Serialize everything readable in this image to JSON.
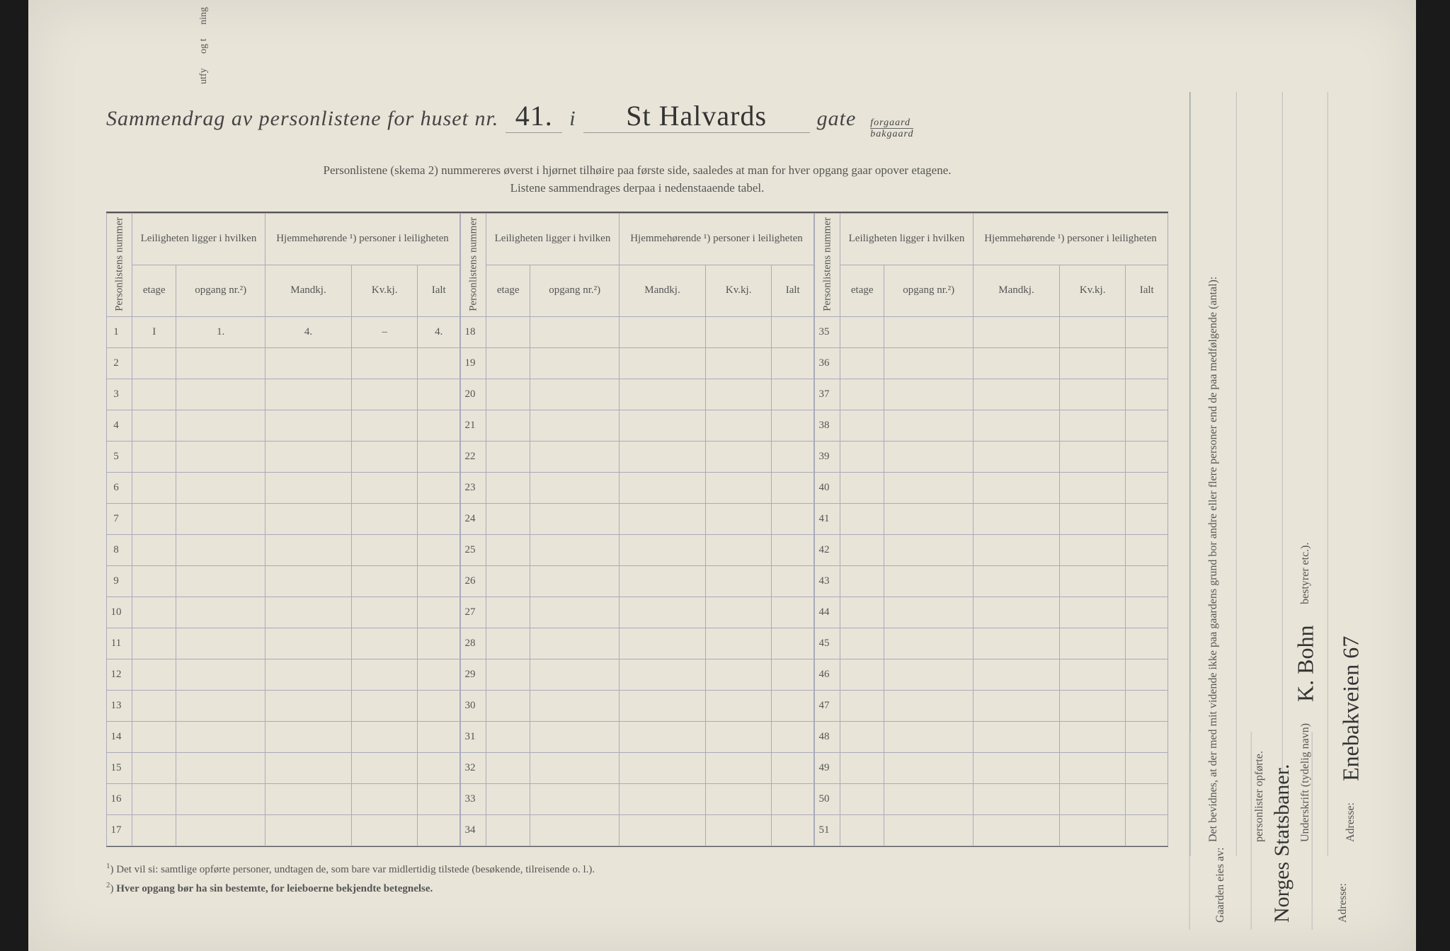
{
  "top_fragments": [
    "utfy",
    "og t",
    "ning"
  ],
  "title": {
    "prefix": "Sammendrag av personlistene for huset nr.",
    "house_nr": "41.",
    "sep1": "i",
    "street": "St Halvards",
    "suffix": "gate",
    "frac_top": "forgaard",
    "frac_bottom": "bakgaard"
  },
  "subtitle_line1": "Personlistene (skema 2) nummereres øverst i hjørnet tilhøire paa første side, saaledes at man for hver opgang gaar opover etagene.",
  "subtitle_line2": "Listene sammendrages derpaa i nedenstaaende tabel.",
  "headers": {
    "personlistens": "Personlistens nummer",
    "leiligheten_group": "Leiligheten ligger i hvilken",
    "hjemme_group": "Hjemmehørende ¹) personer i leiligheten",
    "etage": "etage",
    "opgang": "opgang nr.²)",
    "mandkj": "Mandkj.",
    "kvkj": "Kv.kj.",
    "ialt": "Ialt"
  },
  "row_ranges": [
    [
      1,
      17
    ],
    [
      18,
      34
    ],
    [
      35,
      51
    ]
  ],
  "filled_row": {
    "etage": "I",
    "opgang": "1.",
    "mandkj": "4.",
    "kvkj": "–",
    "ialt": "4."
  },
  "row18_mark": "18",
  "footnote1": "Det vil si: samtlige opførte personer, undtagen de, som bare var midlertidig tilstede (besøkende, tilreisende o. l.).",
  "footnote2": "Hver opgang bør ha sin bestemte, for leieboerne bekjendte betegnelse.",
  "side": {
    "bevidnes": "Det bevidnes, at der med mit vidende ikke paa gaardens grund bor andre eller flere personer end de paa medfølgende (antal):",
    "opforte": "personlister opførte.",
    "underskrift_label": "Underskrift (tydelig navn)",
    "underskrift_value": "K. Bohn",
    "bestyrer": "bestyrer etc.).",
    "adresse_label": "Adresse:",
    "adresse_value": "Enebakveien 67"
  },
  "bottom_side": {
    "gaarden_label": "Gaarden eies av:",
    "gaarden_value": "Norges Statsbaner.",
    "adresse_label": "Adresse:"
  },
  "colors": {
    "paper": "#e8e4d8",
    "ink": "#444444",
    "rule": "#aaaabb",
    "handwriting": "#333333"
  }
}
